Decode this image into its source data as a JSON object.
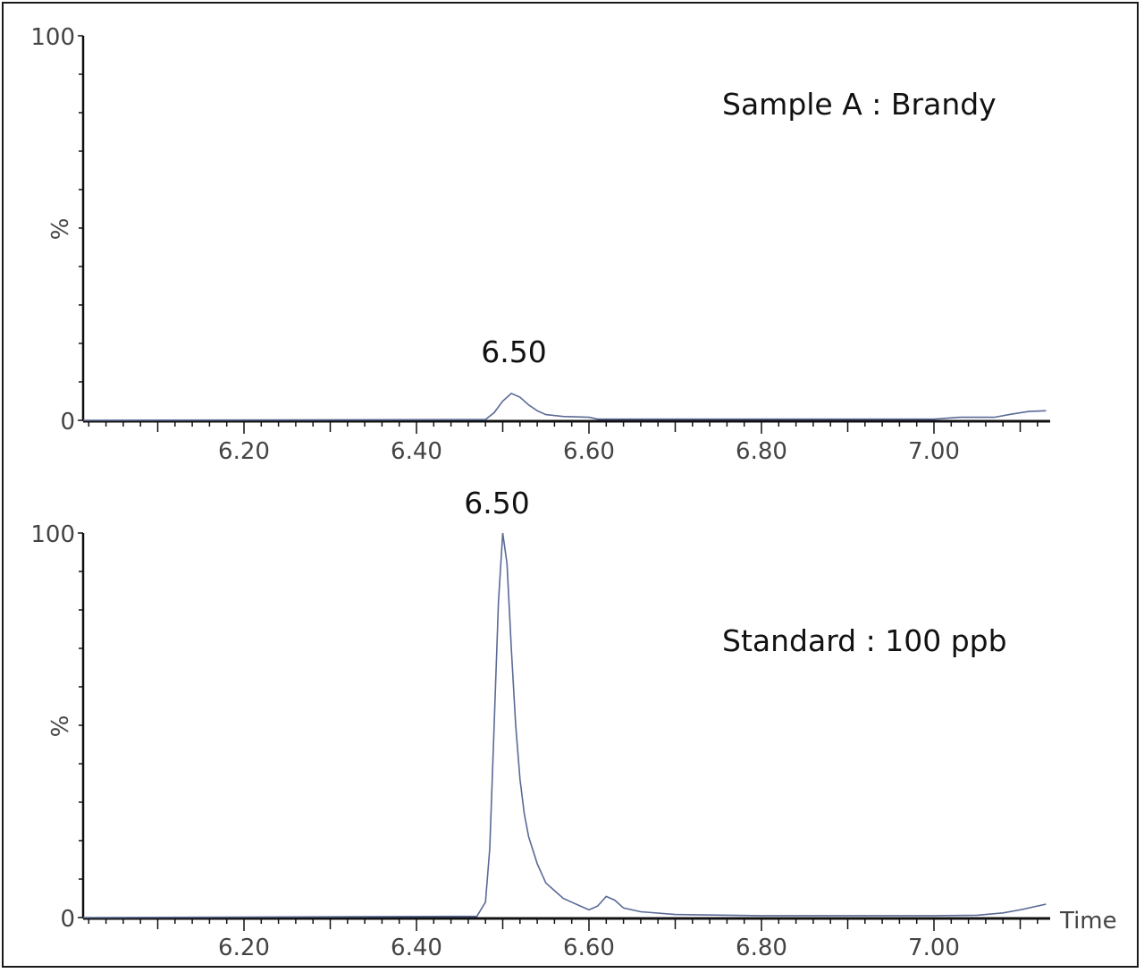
{
  "chart_data": [
    {
      "type": "line",
      "title": "Sample A : Brandy",
      "xlabel": "",
      "ylabel": "%",
      "xlim": [
        6.013,
        7.135
      ],
      "ylim": [
        0,
        100
      ],
      "x_ticks": [
        "6.20",
        "6.40",
        "6.60",
        "6.80",
        "7.00"
      ],
      "y_ticks": [
        "0",
        "100"
      ],
      "grid": false,
      "annotations": [
        {
          "text": "6.50",
          "x": 6.5
        }
      ],
      "series": [
        {
          "name": "Sample A : Brandy",
          "color": "#5a6a96",
          "x": [
            6.013,
            6.48,
            6.49,
            6.5,
            6.51,
            6.52,
            6.53,
            6.54,
            6.55,
            6.57,
            6.6,
            6.61,
            6.7,
            6.8,
            6.9,
            7.0,
            7.03,
            7.05,
            7.07,
            7.09,
            7.11,
            7.13
          ],
          "y": [
            0,
            0.2,
            2,
            5,
            7,
            6,
            4,
            2.5,
            1.5,
            1,
            0.8,
            0.3,
            0.3,
            0.3,
            0.3,
            0.3,
            0.8,
            0.8,
            0.8,
            1.6,
            2.3,
            2.5
          ]
        }
      ]
    },
    {
      "type": "line",
      "title": "Standard : 100 ppb",
      "xlabel": "Time",
      "ylabel": "%",
      "xlim": [
        6.013,
        7.135
      ],
      "ylim": [
        0,
        100
      ],
      "x_ticks": [
        "6.20",
        "6.40",
        "6.60",
        "6.80",
        "7.00"
      ],
      "y_ticks": [
        "0",
        "100"
      ],
      "grid": false,
      "annotations": [
        {
          "text": "6.50",
          "x": 6.5
        }
      ],
      "series": [
        {
          "name": "Standard : 100 ppb",
          "color": "#5a6a96",
          "x": [
            6.013,
            6.44,
            6.47,
            6.48,
            6.485,
            6.49,
            6.495,
            6.5,
            6.505,
            6.51,
            6.515,
            6.52,
            6.525,
            6.53,
            6.54,
            6.55,
            6.56,
            6.57,
            6.58,
            6.59,
            6.6,
            6.61,
            6.62,
            6.63,
            6.64,
            6.66,
            6.7,
            6.8,
            6.9,
            7.0,
            7.05,
            7.08,
            7.1,
            7.13
          ],
          "y": [
            0,
            0.3,
            0.3,
            4,
            18,
            50,
            82,
            100,
            92,
            70,
            50,
            36,
            27,
            21,
            14,
            9,
            7,
            5,
            4,
            3,
            2,
            3,
            5.5,
            4.5,
            2.5,
            1.5,
            0.8,
            0.5,
            0.5,
            0.5,
            0.6,
            1.2,
            2,
            3.5
          ]
        }
      ]
    }
  ],
  "panels": [
    {
      "label": "Sample A : Brandy",
      "peak_label": "6.50",
      "y_top": "100",
      "y_bottom": "0",
      "y_title": "%"
    },
    {
      "label": "Standard : 100 ppb",
      "peak_label": "6.50",
      "y_top": "100",
      "y_bottom": "0",
      "y_title": "%",
      "x_title": "Time"
    }
  ],
  "x_tick_labels": [
    "6.20",
    "6.40",
    "6.60",
    "6.80",
    "7.00"
  ],
  "colors": {
    "trace": "#5a6a96",
    "axis": "#111111",
    "tick_text": "#444444",
    "frame": "#1a1a1a"
  }
}
